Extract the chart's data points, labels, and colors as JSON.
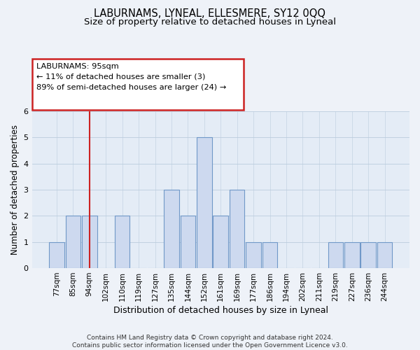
{
  "title": "LABURNAMS, LYNEAL, ELLESMERE, SY12 0QQ",
  "subtitle": "Size of property relative to detached houses in Lyneal",
  "xlabel": "Distribution of detached houses by size in Lyneal",
  "ylabel": "Number of detached properties",
  "categories": [
    "77sqm",
    "85sqm",
    "94sqm",
    "102sqm",
    "110sqm",
    "119sqm",
    "127sqm",
    "135sqm",
    "144sqm",
    "152sqm",
    "161sqm",
    "169sqm",
    "177sqm",
    "186sqm",
    "194sqm",
    "202sqm",
    "211sqm",
    "219sqm",
    "227sqm",
    "236sqm",
    "244sqm"
  ],
  "values": [
    1,
    2,
    2,
    0,
    2,
    0,
    0,
    3,
    2,
    5,
    2,
    3,
    1,
    1,
    0,
    0,
    0,
    1,
    1,
    1,
    1
  ],
  "bar_color": "#cdd9ef",
  "bar_edge_color": "#7098c8",
  "highlight_line_index": 2,
  "highlight_line_color": "#cc2222",
  "annotation_box_text": "LABURNAMS: 95sqm\n← 11% of detached houses are smaller (3)\n89% of semi-detached houses are larger (24) →",
  "annotation_box_edge_color": "#cc2222",
  "annotation_box_fill_color": "#ffffff",
  "ylim": [
    0,
    6
  ],
  "yticks": [
    0,
    1,
    2,
    3,
    4,
    5,
    6
  ],
  "grid_color": "#bbccdd",
  "background_color": "#eef2f8",
  "plot_background_color": "#e4ecf6",
  "title_fontsize": 10.5,
  "subtitle_fontsize": 9.5,
  "xlabel_fontsize": 9,
  "ylabel_fontsize": 8.5,
  "tick_fontsize": 7.5,
  "footer_text": "Contains HM Land Registry data © Crown copyright and database right 2024.\nContains public sector information licensed under the Open Government Licence v3.0.",
  "footer_fontsize": 6.5
}
